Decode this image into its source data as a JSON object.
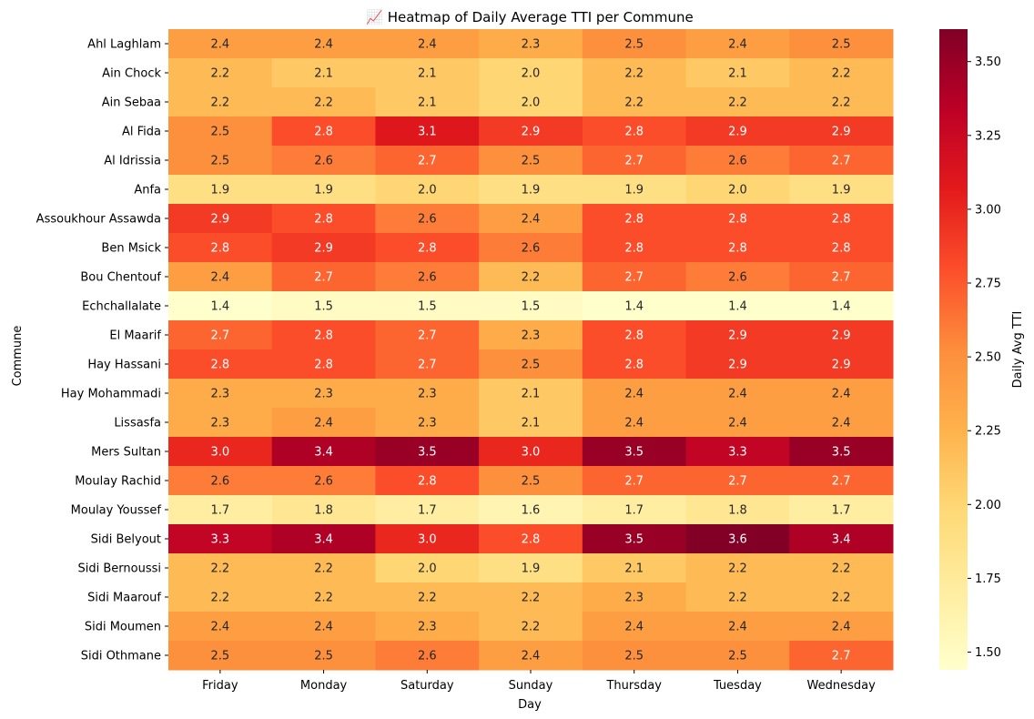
{
  "chart_data": {
    "type": "heatmap",
    "title": "📈 Heatmap of Daily Average TTI per Commune",
    "xlabel": "Day",
    "ylabel": "Commune",
    "colorbar_label": "Daily Avg TTI",
    "colormap": "YlOrRd",
    "vmin": 1.44,
    "vmax": 3.61,
    "colorbar_ticks": [
      "1.50",
      "1.75",
      "2.00",
      "2.25",
      "2.50",
      "2.75",
      "3.00",
      "3.25",
      "3.50"
    ],
    "x_categories": [
      "Friday",
      "Monday",
      "Saturday",
      "Sunday",
      "Thursday",
      "Tuesday",
      "Wednesday"
    ],
    "y_categories": [
      "Ahl Laghlam",
      "Ain Chock",
      "Ain Sebaa",
      "Al Fida",
      "Al Idrissia",
      "Anfa",
      "Assoukhour Assawda",
      "Ben Msick",
      "Bou Chentouf",
      "Echchallalate",
      "El Maarif",
      "Hay Hassani",
      "Hay Mohammadi",
      "Lissasfa",
      "Mers Sultan",
      "Moulay Rachid",
      "Moulay Youssef",
      "Sidi Belyout",
      "Sidi Bernoussi",
      "Sidi Maarouf",
      "Sidi Moumen",
      "Sidi Othmane"
    ],
    "values": [
      [
        2.4,
        2.4,
        2.4,
        2.3,
        2.5,
        2.4,
        2.5
      ],
      [
        2.2,
        2.1,
        2.1,
        2.0,
        2.2,
        2.1,
        2.2
      ],
      [
        2.2,
        2.2,
        2.1,
        2.0,
        2.2,
        2.2,
        2.2
      ],
      [
        2.5,
        2.8,
        3.1,
        2.9,
        2.8,
        2.9,
        2.9
      ],
      [
        2.5,
        2.6,
        2.7,
        2.5,
        2.7,
        2.6,
        2.7
      ],
      [
        1.9,
        1.9,
        2.0,
        1.9,
        1.9,
        2.0,
        1.9
      ],
      [
        2.9,
        2.8,
        2.6,
        2.4,
        2.8,
        2.8,
        2.8
      ],
      [
        2.8,
        2.9,
        2.8,
        2.6,
        2.8,
        2.8,
        2.8
      ],
      [
        2.4,
        2.7,
        2.6,
        2.2,
        2.7,
        2.6,
        2.7
      ],
      [
        1.4,
        1.5,
        1.5,
        1.5,
        1.4,
        1.4,
        1.4
      ],
      [
        2.7,
        2.8,
        2.7,
        2.3,
        2.8,
        2.9,
        2.9
      ],
      [
        2.8,
        2.8,
        2.7,
        2.5,
        2.8,
        2.9,
        2.9
      ],
      [
        2.3,
        2.3,
        2.3,
        2.1,
        2.4,
        2.4,
        2.4
      ],
      [
        2.3,
        2.4,
        2.3,
        2.1,
        2.4,
        2.4,
        2.4
      ],
      [
        3.0,
        3.4,
        3.5,
        3.0,
        3.5,
        3.3,
        3.5
      ],
      [
        2.6,
        2.6,
        2.8,
        2.5,
        2.7,
        2.7,
        2.7
      ],
      [
        1.7,
        1.8,
        1.7,
        1.6,
        1.7,
        1.8,
        1.7
      ],
      [
        3.3,
        3.4,
        3.0,
        2.8,
        3.5,
        3.6,
        3.4
      ],
      [
        2.2,
        2.2,
        2.0,
        1.9,
        2.1,
        2.2,
        2.2
      ],
      [
        2.2,
        2.2,
        2.2,
        2.2,
        2.3,
        2.2,
        2.2
      ],
      [
        2.4,
        2.4,
        2.3,
        2.2,
        2.4,
        2.4,
        2.4
      ],
      [
        2.5,
        2.5,
        2.6,
        2.4,
        2.5,
        2.5,
        2.7
      ]
    ]
  }
}
